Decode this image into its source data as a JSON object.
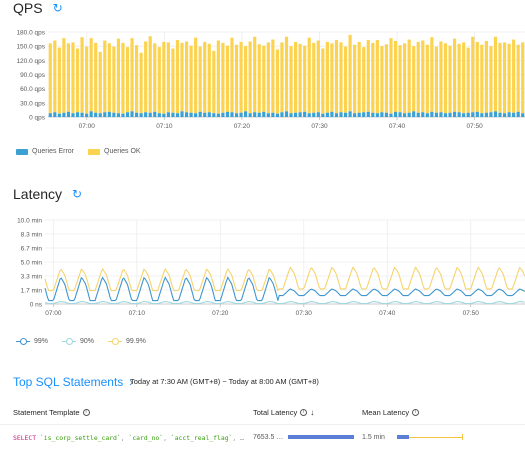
{
  "qps": {
    "title": "QPS",
    "refresh_icon": "refresh-icon",
    "y_ticks": [
      "180.0 qps",
      "150.0 qps",
      "120.0 qps",
      "90.0 qps",
      "60.0 qps",
      "30.0 qps",
      "0 qps"
    ],
    "legend": [
      {
        "label": "Queries Error",
        "color": "#3ba1d3"
      },
      {
        "label": "Queries OK",
        "color": "#fcd34f"
      }
    ]
  },
  "latency": {
    "title": "Latency",
    "refresh_icon": "refresh-icon",
    "y_ticks": [
      "10.0 min",
      "8.3 min",
      "6.7 min",
      "5.0 min",
      "3.3 min",
      "1.7 min",
      "0 ns"
    ],
    "legend": [
      {
        "label": "99%",
        "color": "#3e95d0"
      },
      {
        "label": "90%",
        "color": "#9fd8e0"
      },
      {
        "label": "99.9%",
        "color": "#f5d36e"
      }
    ]
  },
  "top_sql": {
    "title": "Top SQL Statements",
    "chevron_icon": "chevron-right-icon",
    "range": "Today at 7:30 AM (GMT+8) ~ Today at 8:00 AM (GMT+8)",
    "columns": {
      "template": "Statement Template",
      "total_latency": "Total Latency",
      "mean_latency": "Mean Latency"
    },
    "rows": [
      {
        "kw": "SELECT",
        "cols": [
          "`is_corp_settle_card`",
          "`card_no`",
          "`acct_real_flag`"
        ],
        "ellipsis": "…",
        "total_latency": "7653.5 …",
        "total_latency_fraction": 1.0,
        "mean_latency": "1.5 min",
        "mean_latency_fraction": 0.18
      }
    ]
  },
  "chart_data": [
    {
      "type": "bar",
      "title": "QPS",
      "ylabel": "",
      "ylim": [
        0,
        180
      ],
      "x_ticks": [
        "07:00",
        "07:10",
        "07:20",
        "07:30",
        "07:40",
        "07:50"
      ],
      "x_range_minutes": [
        -5,
        56.5
      ],
      "series": [
        {
          "name": "Queries Error",
          "values": [
            8,
            10,
            7,
            9,
            11,
            8,
            10,
            9,
            7,
            12,
            9,
            8,
            10,
            11,
            9,
            8,
            7,
            10,
            12,
            9,
            8,
            10,
            9,
            11,
            8,
            7,
            10,
            9,
            8,
            12,
            10,
            9,
            8,
            11,
            9,
            10,
            8,
            7,
            9,
            11,
            10,
            8,
            9,
            12,
            8,
            10,
            9,
            11,
            8,
            9,
            7,
            10,
            12,
            8,
            9,
            10,
            11,
            8,
            9,
            10,
            7,
            9,
            11,
            8,
            10,
            9,
            12,
            8,
            9,
            10,
            11,
            9,
            8,
            10,
            9,
            7,
            11,
            10,
            8,
            9,
            12,
            9,
            10,
            8,
            11,
            9,
            10,
            8,
            9,
            11,
            10,
            8,
            9,
            10,
            11,
            8,
            9,
            10,
            12,
            9,
            8,
            10,
            9,
            11,
            8
          ]
        },
        {
          "name": "Queries OK",
          "values": [
            148,
            152,
            140,
            158,
            145,
            150,
            135,
            160,
            142,
            155,
            148,
            130,
            152,
            145,
            140,
            158,
            150,
            138,
            155,
            143,
            128,
            150,
            162,
            145,
            140,
            152,
            148,
            136,
            155,
            145,
            150,
            142,
            160,
            138,
            150,
            145,
            132,
            155,
            148,
            140,
            158,
            145,
            150,
            138,
            152,
            160,
            145,
            140,
            150,
            155,
            136,
            148,
            158,
            142,
            150,
            145,
            140,
            160,
            148,
            152,
            138,
            150,
            145,
            155,
            148,
            140,
            162,
            145,
            150,
            138,
            152,
            148,
            155,
            140,
            145,
            160,
            150,
            142,
            148,
            155,
            138,
            150,
            152,
            145,
            158,
            140,
            150,
            148,
            142,
            155,
            145,
            150,
            138,
            160,
            148,
            145,
            152,
            140,
            158,
            148,
            150,
            145,
            155,
            142,
            150
          ]
        }
      ]
    },
    {
      "type": "line",
      "title": "Latency",
      "ylabel": "",
      "ylim": [
        0,
        10
      ],
      "y_unit": "min",
      "x_ticks": [
        "07:00",
        "07:10",
        "07:20",
        "07:30",
        "07:40",
        "07:50"
      ],
      "x_range_minutes": [
        -1,
        56.5
      ],
      "series": [
        {
          "name": "99%",
          "pattern_period_minutes": 2.5,
          "low": 0.4,
          "high": 3.2,
          "late_low": 1.0,
          "late_high": 1.8
        },
        {
          "name": "90%",
          "pattern_period_minutes": 2.5,
          "low": 0.05,
          "high": 0.3
        },
        {
          "name": "99.9%",
          "pattern_period_minutes": 2.5,
          "low": 1.6,
          "high": 4.2,
          "late_low": 1.8,
          "late_high": 4.4
        }
      ]
    }
  ]
}
